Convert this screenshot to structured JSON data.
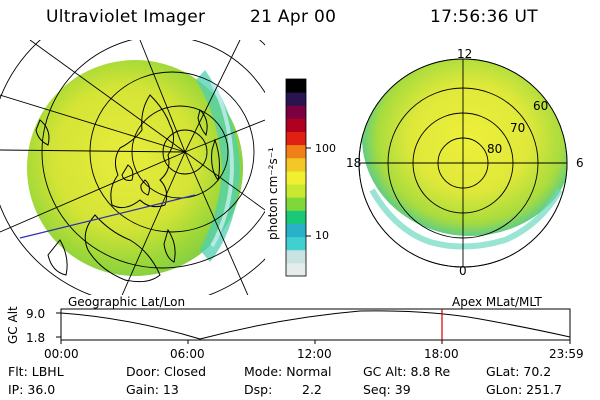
{
  "header": {
    "instrument": "Ultraviolet Imager",
    "date": "21 Apr 00",
    "time": "17:56:36 UT"
  },
  "colorbar": {
    "unit_label": "photon cm⁻²s⁻¹",
    "ticks": [
      "100",
      "10"
    ],
    "colors": [
      "#e6ecec",
      "#c9e3e3",
      "#40d0d0",
      "#2ab0c8",
      "#19c878",
      "#7ed83a",
      "#c8e832",
      "#f0f030",
      "#f2c828",
      "#f08018",
      "#e02010",
      "#b00020",
      "#7a0040",
      "#2a1450",
      "#000000"
    ]
  },
  "polar_plot": {
    "labels": {
      "top": "12",
      "bottom": "0",
      "left": "18",
      "right": "6",
      "r60": "60",
      "r70": "70",
      "r80": "80"
    }
  },
  "strip": {
    "left_label": "Geographic Lat/Lon",
    "right_label": "Apex MLat/MLT",
    "yaxis_title": "GC Alt",
    "ytick_top": "9.0",
    "ytick_bottom": "1.8",
    "time_ticks": [
      "00:00",
      "06:00",
      "12:00",
      "18:00",
      "23:59"
    ],
    "marker_color": "#cc0000"
  },
  "info": {
    "flt": "Flt: LBHL",
    "door": "Door: Closed",
    "mode": "Mode: Normal",
    "gc_alt": "GC Alt: 8.8 Re",
    "glat": "GLat:   70.2",
    "ip": "IP: 36.0",
    "gain": "Gain: 13",
    "dsp_label": "Dsp:",
    "dsp_value": "2.2",
    "seq": "Seq: 39",
    "glon": "GLon: 251.7"
  }
}
